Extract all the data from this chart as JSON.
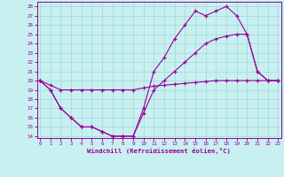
{
  "bg_color": "#c8f0f0",
  "line_color": "#990099",
  "xlabel": "Windchill (Refroidissement éolien,°C)",
  "xlim": [
    -0.3,
    23.3
  ],
  "ylim": [
    13.8,
    28.5
  ],
  "xticks": [
    0,
    1,
    2,
    3,
    4,
    5,
    6,
    7,
    8,
    9,
    10,
    11,
    12,
    13,
    14,
    15,
    16,
    17,
    18,
    19,
    20,
    21,
    22,
    23
  ],
  "yticks": [
    14,
    15,
    16,
    17,
    18,
    19,
    20,
    21,
    22,
    23,
    24,
    25,
    26,
    27,
    28
  ],
  "s1_x": [
    0,
    1,
    2,
    3,
    4,
    5,
    6,
    7,
    8,
    9,
    10,
    11,
    12,
    13,
    14,
    15,
    16,
    17,
    18,
    19,
    20,
    21,
    22,
    23
  ],
  "s1_y": [
    20,
    19.5,
    19,
    19,
    19,
    19,
    19,
    19,
    19,
    19,
    19.2,
    19.4,
    19.5,
    19.6,
    19.7,
    19.8,
    19.9,
    20.0,
    20.0,
    20.0,
    20.0,
    20.0,
    20.0,
    20.0
  ],
  "s2_x": [
    0,
    1,
    2,
    3,
    4,
    5,
    6,
    7,
    8,
    9,
    10,
    11,
    12,
    13,
    14,
    15,
    16,
    17,
    18,
    19,
    20,
    21,
    22,
    23
  ],
  "s2_y": [
    20,
    19,
    17,
    16,
    15,
    15,
    14.5,
    14,
    14,
    14,
    16.5,
    19,
    20,
    21,
    22,
    23,
    24,
    24.5,
    24.8,
    25,
    25,
    21,
    20,
    20
  ],
  "s3_x": [
    0,
    1,
    2,
    3,
    4,
    5,
    6,
    7,
    8,
    9,
    10,
    11,
    12,
    13,
    14,
    15,
    16,
    17,
    18,
    19,
    20,
    21,
    22,
    23
  ],
  "s3_y": [
    20,
    19,
    17,
    16,
    15,
    15,
    14.5,
    14,
    14,
    14,
    17,
    21,
    22.5,
    24.5,
    26,
    27.5,
    27,
    27.5,
    28,
    27,
    25,
    21,
    20,
    20
  ]
}
